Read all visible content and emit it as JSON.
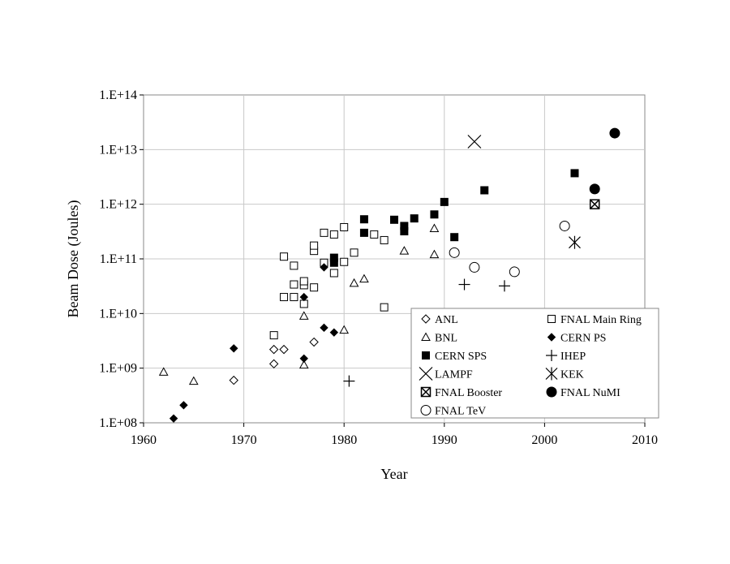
{
  "chart_data": {
    "type": "scatter",
    "title": "",
    "xlabel": "Year",
    "ylabel": "Beam Dose (Joules)",
    "xlim": [
      1960,
      2010
    ],
    "ylim": [
      100000000.0,
      100000000000000.0
    ],
    "yscale": "log",
    "grid": true,
    "x_ticks": [
      "1960",
      "1970",
      "1980",
      "1990",
      "2000",
      "2010"
    ],
    "y_ticks": [
      "1.E+08",
      "1.E+09",
      "1.E+10",
      "1.E+11",
      "1.E+12",
      "1.E+13",
      "1.E+14"
    ],
    "legend_position": "lower-right",
    "series": [
      {
        "name": "ANL",
        "marker": "diamond-open",
        "points": [
          [
            1969,
            600000000.0
          ],
          [
            1973,
            1200000000.0
          ],
          [
            1973,
            2200000000.0
          ],
          [
            1974,
            2200000000.0
          ],
          [
            1977,
            3000000000.0
          ]
        ]
      },
      {
        "name": "FNAL Main Ring",
        "marker": "square-open",
        "points": [
          [
            1973,
            4000000000.0
          ],
          [
            1974,
            20000000000.0
          ],
          [
            1974,
            110000000000.0
          ],
          [
            1975,
            20000000000.0
          ],
          [
            1975,
            34000000000.0
          ],
          [
            1975,
            75000000000.0
          ],
          [
            1976,
            15000000000.0
          ],
          [
            1976,
            33000000000.0
          ],
          [
            1976,
            39000000000.0
          ],
          [
            1977,
            30000000000.0
          ],
          [
            1977,
            140000000000.0
          ],
          [
            1977,
            175000000000.0
          ],
          [
            1978,
            85000000000.0
          ],
          [
            1978,
            300000000000.0
          ],
          [
            1979,
            55000000000.0
          ],
          [
            1979,
            280000000000.0
          ],
          [
            1980,
            88000000000.0
          ],
          [
            1980,
            380000000000.0
          ],
          [
            1981,
            130000000000.0
          ],
          [
            1983,
            280000000000.0
          ],
          [
            1984,
            220000000000.0
          ],
          [
            1984,
            13000000000.0
          ]
        ]
      },
      {
        "name": "BNL",
        "marker": "triangle-open",
        "points": [
          [
            1962,
            850000000.0
          ],
          [
            1965,
            580000000.0
          ],
          [
            1976,
            1150000000.0
          ],
          [
            1976,
            9000000000.0
          ],
          [
            1980,
            5000000000.0
          ],
          [
            1981,
            36000000000.0
          ],
          [
            1982,
            43000000000.0
          ],
          [
            1986,
            140000000000.0
          ],
          [
            1989,
            120000000000.0
          ],
          [
            1989,
            360000000000.0
          ]
        ]
      },
      {
        "name": "CERN PS",
        "marker": "diamond-filled",
        "points": [
          [
            1963,
            120000000.0
          ],
          [
            1964,
            210000000.0
          ],
          [
            1969,
            2300000000.0
          ],
          [
            1976,
            1500000000.0
          ],
          [
            1976,
            20000000000.0
          ],
          [
            1978,
            5500000000.0
          ],
          [
            1978,
            70000000000.0
          ],
          [
            1979,
            4500000000.0
          ]
        ]
      },
      {
        "name": "CERN SPS",
        "marker": "square-filled",
        "points": [
          [
            1979,
            85000000000.0
          ],
          [
            1979,
            105000000000.0
          ],
          [
            1982,
            300000000000.0
          ],
          [
            1982,
            530000000000.0
          ],
          [
            1985,
            520000000000.0
          ],
          [
            1986,
            320000000000.0
          ],
          [
            1986,
            400000000000.0
          ],
          [
            1987,
            550000000000.0
          ],
          [
            1989,
            650000000000.0
          ],
          [
            1990,
            1100000000000.0
          ],
          [
            1991,
            250000000000.0
          ],
          [
            1994,
            1800000000000.0
          ],
          [
            2003,
            3700000000000.0
          ]
        ]
      },
      {
        "name": "IHEP",
        "marker": "plus",
        "points": [
          [
            1980.5,
            580000000.0
          ],
          [
            1992,
            34000000000.0
          ],
          [
            1996,
            32000000000.0
          ]
        ]
      },
      {
        "name": "LAMPF",
        "marker": "x",
        "points": [
          [
            1993,
            14000000000000.0
          ]
        ]
      },
      {
        "name": "KEK",
        "marker": "asterisk",
        "points": [
          [
            2003,
            200000000000.0
          ]
        ]
      },
      {
        "name": "FNAL Booster",
        "marker": "square-x",
        "points": [
          [
            2005,
            1000000000000.0
          ]
        ]
      },
      {
        "name": "FNAL NuMI",
        "marker": "circle-filled",
        "points": [
          [
            2005,
            1900000000000.0
          ],
          [
            2007,
            20000000000000.0
          ]
        ]
      },
      {
        "name": "FNAL TeV",
        "marker": "circle-open",
        "points": [
          [
            1991,
            130000000000.0
          ],
          [
            1993,
            70000000000.0
          ],
          [
            1997,
            58000000000.0
          ],
          [
            2002,
            400000000000.0
          ]
        ]
      }
    ]
  }
}
